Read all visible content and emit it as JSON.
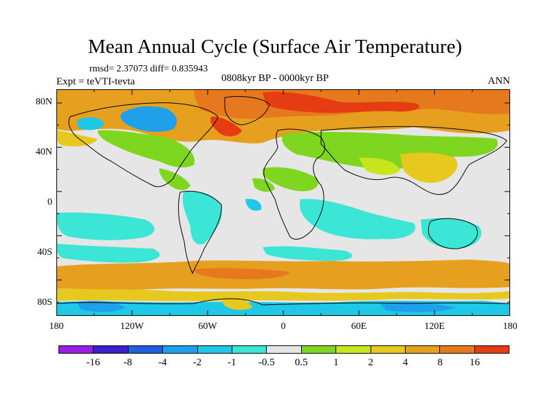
{
  "title": "Mean Annual Cycle (Surface Air Temperature)",
  "stats": "rmsd= 2.37073 diff= 0.835943",
  "expt": "Expt = teVTI-tevta",
  "period": "0808kyr BP - 0000kyr BP",
  "season": "ANN",
  "lat_ticks": [
    "80N",
    "40N",
    "0",
    "40S",
    "80S"
  ],
  "lon_ticks": [
    "180",
    "120W",
    "60W",
    "0",
    "60E",
    "120E",
    "180"
  ],
  "colorbar": {
    "colors": [
      "#9a1fe6",
      "#3c1fd0",
      "#1f5fe0",
      "#1fa0ea",
      "#1ec8e6",
      "#3ce6d6",
      "#e6e6e6",
      "#7ed61e",
      "#c8e61e",
      "#e6c81e",
      "#e6a01e",
      "#e6781e",
      "#e63c12"
    ],
    "labels": [
      "-16",
      "-8",
      "-4",
      "-2",
      "-1",
      "-0.5",
      "0.5",
      "1",
      "2",
      "4",
      "8",
      "16"
    ]
  },
  "map_colors": {
    "background": "#e6e6e6",
    "ocean_cool": "#3ce6d6",
    "cyan": "#1ec8e6",
    "blue": "#1fa0ea",
    "green": "#7ed61e",
    "yellow": "#c8e61e",
    "gold": "#e6c81e",
    "orange": "#e6a01e",
    "dark_orange": "#e6781e",
    "red": "#e63c12",
    "coast": "#000000"
  }
}
